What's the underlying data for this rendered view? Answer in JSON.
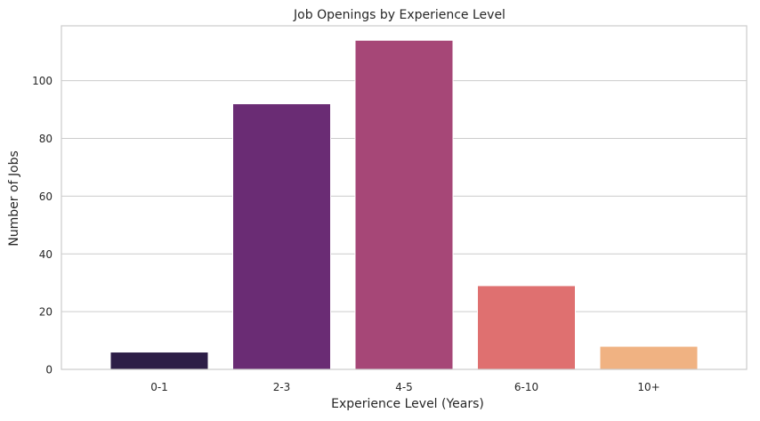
{
  "chart_data": {
    "type": "bar",
    "title": "Job Openings by Experience Level",
    "xlabel": "Experience Level (Years)",
    "ylabel": "Number of Jobs",
    "categories": [
      "0-1",
      "2-3",
      "4-5",
      "6-10",
      "10+"
    ],
    "values": [
      6,
      92,
      114,
      29,
      8
    ],
    "colors": [
      "#2d1e47",
      "#6a2c74",
      "#a64777",
      "#df7070",
      "#f0b282"
    ],
    "ylim": [
      0,
      119
    ],
    "yticks": [
      0,
      20,
      40,
      60,
      80,
      100
    ],
    "grid": "horizontal",
    "legend": "none"
  }
}
